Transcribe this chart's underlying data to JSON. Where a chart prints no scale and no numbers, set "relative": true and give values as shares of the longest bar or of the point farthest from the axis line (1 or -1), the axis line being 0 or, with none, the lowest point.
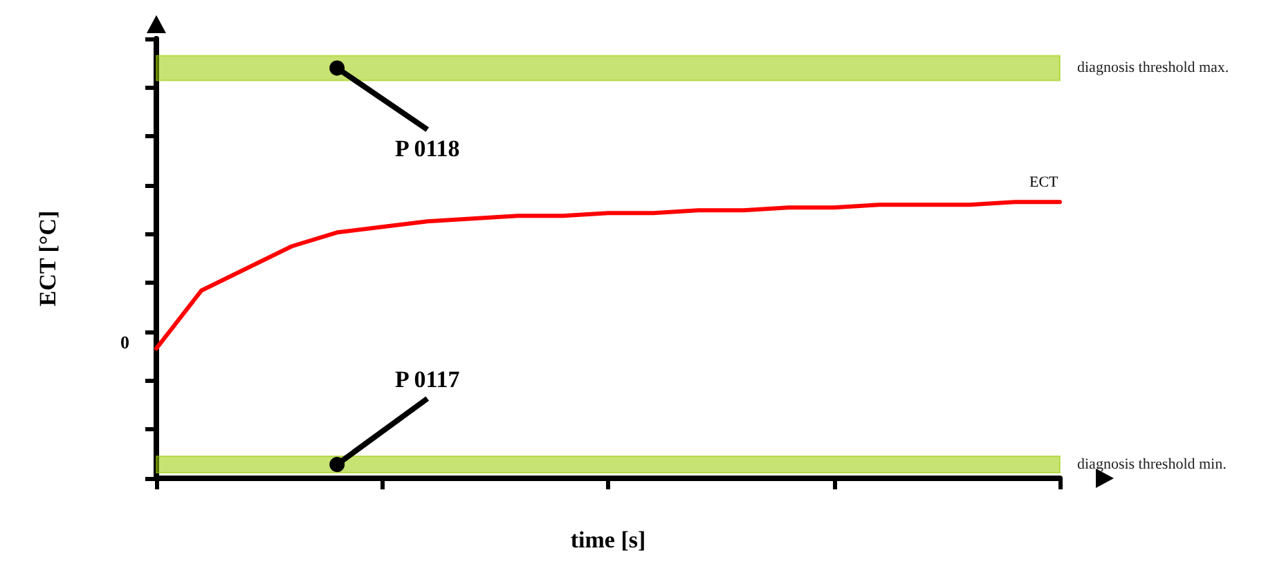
{
  "chart_data": {
    "type": "line",
    "relative": true,
    "xlabel": "time [s]",
    "ylabel": "ECT [°C]",
    "categories": [
      null,
      null,
      null,
      null,
      null,
      null,
      null,
      null,
      null,
      null,
      null,
      null,
      null,
      null,
      null,
      null,
      null,
      null,
      null,
      null,
      null
    ],
    "series": [
      {
        "name": "ECT",
        "color": "#ff0000",
        "values": [
          0.47,
          0.68,
          0.76,
          0.84,
          0.89,
          0.91,
          0.93,
          0.94,
          0.95,
          0.95,
          0.96,
          0.96,
          0.97,
          0.97,
          0.98,
          0.98,
          0.99,
          0.99,
          0.99,
          1.0,
          1.0
        ]
      }
    ],
    "bands": [
      {
        "axis": "y",
        "from": 1.44,
        "to": 1.53,
        "label": "diagnosis threshold max.",
        "color": "#99cc00"
      },
      {
        "axis": "y",
        "from": 0.02,
        "to": 0.08,
        "label": "diagnosis threshold min.",
        "color": "#99cc00"
      }
    ],
    "annotations": [
      "P 0118",
      "P 0117",
      "0"
    ],
    "marker": "none",
    "grid": false,
    "legend": false
  }
}
